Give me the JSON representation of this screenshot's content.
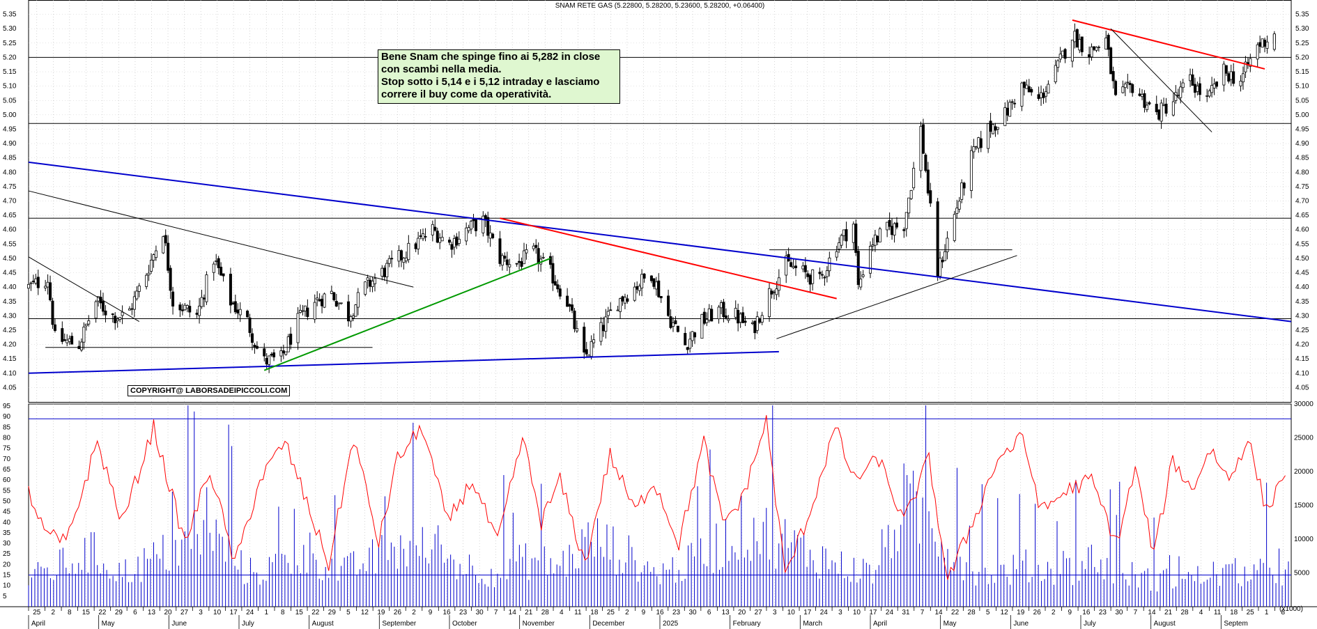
{
  "chart_data": [
    {
      "type": "candlestick",
      "title": "SNAM RETE GAS (5.22800, 5.28200, 5.23600, 5.28200, +0.06400)",
      "ylim": [
        4.0,
        5.4
      ],
      "y_ticks": [
        "4.05",
        "4.10",
        "4.15",
        "4.20",
        "4.25",
        "4.30",
        "4.35",
        "4.40",
        "4.45",
        "4.50",
        "4.55",
        "4.60",
        "4.65",
        "4.70",
        "4.75",
        "4.80",
        "4.85",
        "4.90",
        "4.95",
        "5.00",
        "5.05",
        "5.10",
        "5.15",
        "5.20",
        "5.25",
        "5.30",
        "5.35"
      ],
      "horizontal_levels": [
        5.2,
        4.97,
        4.64,
        4.29
      ],
      "trendlines": [
        {
          "color": "#0000cc",
          "from": [
            "2024-03-25",
            4.835
          ],
          "to": [
            "2025-09-01",
            4.28
          ]
        },
        {
          "color": "#0000cc",
          "from": [
            "2024-03-25",
            4.1
          ],
          "to": [
            "2025-01-31",
            4.175
          ]
        },
        {
          "color": "#009900",
          "from": [
            "2024-07-01",
            4.11
          ],
          "to": [
            "2024-10-28",
            4.5
          ]
        },
        {
          "color": "#ff0000",
          "from": [
            "2024-10-07",
            4.64
          ],
          "to": [
            "2025-02-24",
            4.36
          ]
        },
        {
          "color": "#ff0000",
          "from": [
            "2025-06-02",
            5.33
          ],
          "to": [
            "2025-08-21",
            5.16
          ]
        },
        {
          "color": "#000000",
          "from": [
            "2024-03-25",
            4.735
          ],
          "to": [
            "2024-09-01",
            4.4
          ]
        },
        {
          "color": "#000000",
          "from": [
            "2024-03-25",
            4.505
          ],
          "to": [
            "2024-05-10",
            4.28
          ]
        },
        {
          "color": "#000000",
          "from": [
            "2025-06-18",
            5.3
          ],
          "to": [
            "2025-07-30",
            4.94
          ]
        },
        {
          "color": "#000000",
          "from": [
            "2025-01-30",
            4.22
          ],
          "to": [
            "2025-05-10",
            4.51
          ]
        },
        {
          "color": "#000000",
          "from": [
            "2024-04-01",
            4.19
          ],
          "to": [
            "2024-08-15",
            4.19
          ]
        },
        {
          "color": "#000000",
          "from": [
            "2025-01-27",
            4.53
          ],
          "to": [
            "2025-05-08",
            4.53
          ]
        }
      ],
      "anchors": [
        [
          "2024-03-25",
          4.4
        ],
        [
          "2024-04-02",
          4.43
        ],
        [
          "2024-04-05",
          4.22
        ],
        [
          "2024-04-15",
          4.2
        ],
        [
          "2024-04-22",
          4.35
        ],
        [
          "2024-04-29",
          4.3
        ],
        [
          "2024-05-05",
          4.3
        ],
        [
          "2024-05-13",
          4.45
        ],
        [
          "2024-05-20",
          4.6
        ],
        [
          "2024-05-24",
          4.35
        ],
        [
          "2024-06-03",
          4.3
        ],
        [
          "2024-06-10",
          4.5
        ],
        [
          "2024-06-17",
          4.35
        ],
        [
          "2024-06-24",
          4.28
        ],
        [
          "2024-06-30",
          4.14
        ],
        [
          "2024-07-08",
          4.15
        ],
        [
          "2024-07-15",
          4.28
        ],
        [
          "2024-07-22",
          4.35
        ],
        [
          "2024-07-29",
          4.38
        ],
        [
          "2024-08-05",
          4.3
        ],
        [
          "2024-08-12",
          4.4
        ],
        [
          "2024-08-19",
          4.45
        ],
        [
          "2024-08-26",
          4.5
        ],
        [
          "2024-09-02",
          4.55
        ],
        [
          "2024-09-09",
          4.6
        ],
        [
          "2024-09-16",
          4.55
        ],
        [
          "2024-09-23",
          4.6
        ],
        [
          "2024-09-30",
          4.63
        ],
        [
          "2024-10-07",
          4.5
        ],
        [
          "2024-10-14",
          4.48
        ],
        [
          "2024-10-21",
          4.52
        ],
        [
          "2024-10-28",
          4.45
        ],
        [
          "2024-11-04",
          4.35
        ],
        [
          "2024-11-11",
          4.15
        ],
        [
          "2024-11-18",
          4.25
        ],
        [
          "2024-11-25",
          4.35
        ],
        [
          "2024-12-02",
          4.4
        ],
        [
          "2024-12-09",
          4.45
        ],
        [
          "2024-12-16",
          4.3
        ],
        [
          "2024-12-23",
          4.2
        ],
        [
          "2024-12-30",
          4.28
        ],
        [
          "2025-01-06",
          4.32
        ],
        [
          "2025-01-13",
          4.3
        ],
        [
          "2025-01-20",
          4.25
        ],
        [
          "2025-01-27",
          4.38
        ],
        [
          "2025-02-03",
          4.48
        ],
        [
          "2025-02-10",
          4.45
        ],
        [
          "2025-02-17",
          4.42
        ],
        [
          "2025-02-24",
          4.55
        ],
        [
          "2025-03-03",
          4.62
        ],
        [
          "2025-03-05",
          4.4
        ],
        [
          "2025-03-10",
          4.55
        ],
        [
          "2025-03-17",
          4.6
        ],
        [
          "2025-03-24",
          4.62
        ],
        [
          "2025-03-31",
          4.95
        ],
        [
          "2025-04-07",
          4.45
        ],
        [
          "2025-04-14",
          4.65
        ],
        [
          "2025-04-21",
          4.85
        ],
        [
          "2025-04-28",
          4.95
        ],
        [
          "2025-05-05",
          5.0
        ],
        [
          "2025-05-12",
          5.1
        ],
        [
          "2025-05-19",
          5.05
        ],
        [
          "2025-05-26",
          5.15
        ],
        [
          "2025-06-02",
          5.28
        ],
        [
          "2025-06-09",
          5.22
        ],
        [
          "2025-06-16",
          5.26
        ],
        [
          "2025-06-20",
          5.05
        ],
        [
          "2025-06-27",
          5.1
        ],
        [
          "2025-07-07",
          5.0
        ],
        [
          "2025-07-14",
          5.05
        ],
        [
          "2025-07-21",
          5.12
        ],
        [
          "2025-07-28",
          5.05
        ],
        [
          "2025-08-04",
          5.15
        ],
        [
          "2025-08-11",
          5.12
        ],
        [
          "2025-08-18",
          5.24
        ],
        [
          "2025-08-25",
          5.282
        ]
      ],
      "last_candle": {
        "date": "2025-08-25",
        "open": 5.228,
        "high": 5.282,
        "low": 5.236,
        "close": 5.282
      }
    },
    {
      "type": "line_and_bar",
      "ylim_left": [
        0,
        96
      ],
      "ylim_right": [
        0,
        30000
      ],
      "y_ticks_left": [
        "5",
        "10",
        "15",
        "20",
        "25",
        "30",
        "35",
        "40",
        "45",
        "50",
        "55",
        "60",
        "65",
        "70",
        "75",
        "80",
        "85",
        "90",
        "95"
      ],
      "y_ticks_right": [
        "5000",
        "10000",
        "15000",
        "20000",
        "25000",
        "30000"
      ],
      "volume_unit": "(x1000)",
      "reference_levels_left": [
        89,
        15
      ],
      "oscillator_color": "#ff0000",
      "volume_color": "#0000cc",
      "oscillator_anchors": [
        [
          0,
          55
        ],
        [
          5,
          35
        ],
        [
          12,
          30
        ],
        [
          22,
          78
        ],
        [
          30,
          40
        ],
        [
          40,
          85
        ],
        [
          50,
          30
        ],
        [
          58,
          65
        ],
        [
          66,
          20
        ],
        [
          74,
          60
        ],
        [
          82,
          78
        ],
        [
          90,
          45
        ],
        [
          96,
          20
        ],
        [
          104,
          80
        ],
        [
          112,
          30
        ],
        [
          118,
          70
        ],
        [
          126,
          85
        ],
        [
          134,
          40
        ],
        [
          142,
          60
        ],
        [
          150,
          30
        ],
        [
          158,
          80
        ],
        [
          164,
          40
        ],
        [
          170,
          60
        ],
        [
          178,
          20
        ],
        [
          186,
          72
        ],
        [
          194,
          45
        ],
        [
          200,
          60
        ],
        [
          208,
          30
        ],
        [
          216,
          78
        ],
        [
          222,
          40
        ],
        [
          228,
          50
        ],
        [
          236,
          88
        ],
        [
          242,
          15
        ],
        [
          250,
          45
        ],
        [
          258,
          85
        ],
        [
          264,
          60
        ],
        [
          272,
          70
        ],
        [
          280,
          40
        ],
        [
          288,
          70
        ],
        [
          294,
          12
        ],
        [
          302,
          40
        ],
        [
          310,
          70
        ],
        [
          318,
          80
        ],
        [
          324,
          45
        ],
        [
          332,
          55
        ],
        [
          340,
          60
        ],
        [
          348,
          30
        ],
        [
          354,
          65
        ],
        [
          360,
          25
        ],
        [
          366,
          70
        ],
        [
          372,
          55
        ],
        [
          378,
          75
        ],
        [
          384,
          60
        ],
        [
          390,
          80
        ],
        [
          396,
          45
        ],
        [
          402,
          65
        ]
      ],
      "volume_anchors": [
        [
          0,
          4000
        ],
        [
          10,
          6000
        ],
        [
          20,
          8000
        ],
        [
          30,
          5000
        ],
        [
          40,
          7000
        ],
        [
          50,
          9000
        ],
        [
          60,
          10000
        ],
        [
          70,
          5000
        ],
        [
          80,
          6000
        ],
        [
          90,
          8000
        ],
        [
          100,
          5000
        ],
        [
          110,
          7000
        ],
        [
          120,
          9000
        ],
        [
          130,
          8000
        ],
        [
          140,
          6000
        ],
        [
          150,
          5000
        ],
        [
          160,
          7000
        ],
        [
          170,
          6000
        ],
        [
          180,
          10000
        ],
        [
          190,
          8000
        ],
        [
          200,
          5000
        ],
        [
          210,
          6000
        ],
        [
          220,
          9000
        ],
        [
          230,
          12000
        ],
        [
          240,
          10000
        ],
        [
          250,
          8000
        ],
        [
          260,
          6000
        ],
        [
          270,
          5000
        ],
        [
          280,
          15000
        ],
        [
          290,
          12000
        ],
        [
          300,
          6000
        ],
        [
          310,
          5000
        ],
        [
          320,
          6000
        ],
        [
          330,
          5000
        ],
        [
          340,
          7000
        ],
        [
          350,
          5000
        ],
        [
          360,
          4000
        ],
        [
          370,
          4000
        ],
        [
          380,
          5000
        ],
        [
          390,
          5000
        ],
        [
          400,
          5000
        ]
      ]
    }
  ],
  "x_axis": {
    "day_labels": [
      "25",
      "2",
      "8",
      "15",
      "22",
      "29",
      "6",
      "13",
      "20",
      "27",
      "3",
      "10",
      "17",
      "24",
      "1",
      "8",
      "15",
      "22",
      "29",
      "5",
      "12",
      "19",
      "26",
      "2",
      "9",
      "16",
      "23",
      "30",
      "7",
      "14",
      "21",
      "28",
      "4",
      "11",
      "18",
      "25",
      "2",
      "9",
      "16",
      "23",
      "30",
      "6",
      "13",
      "20",
      "27",
      "3",
      "10",
      "17",
      "24",
      "3",
      "10",
      "17",
      "24",
      "31",
      "7",
      "14",
      "22",
      "28",
      "5",
      "12",
      "19",
      "26",
      "2",
      "9",
      "16",
      "23",
      "30",
      "7",
      "14",
      "21",
      "28",
      "4",
      "11",
      "18",
      "25",
      "1",
      "8"
    ],
    "month_labels": [
      "April",
      "May",
      "June",
      "July",
      "August",
      "September",
      "October",
      "November",
      "December",
      "2025",
      "February",
      "March",
      "April",
      "May",
      "June",
      "July",
      "August",
      "Septem"
    ]
  },
  "annotations": {
    "note_lines": [
      "Bene Snam che spinge fino ai 5,282 in close",
      "con scambi nella media.",
      "Stop sotto i 5,14 e i 5,12 intraday e lasciamo",
      "correre il buy come da operatività."
    ],
    "copyright": "COPYRIGHT@ LABORSADEIPICCOLI.COM"
  }
}
